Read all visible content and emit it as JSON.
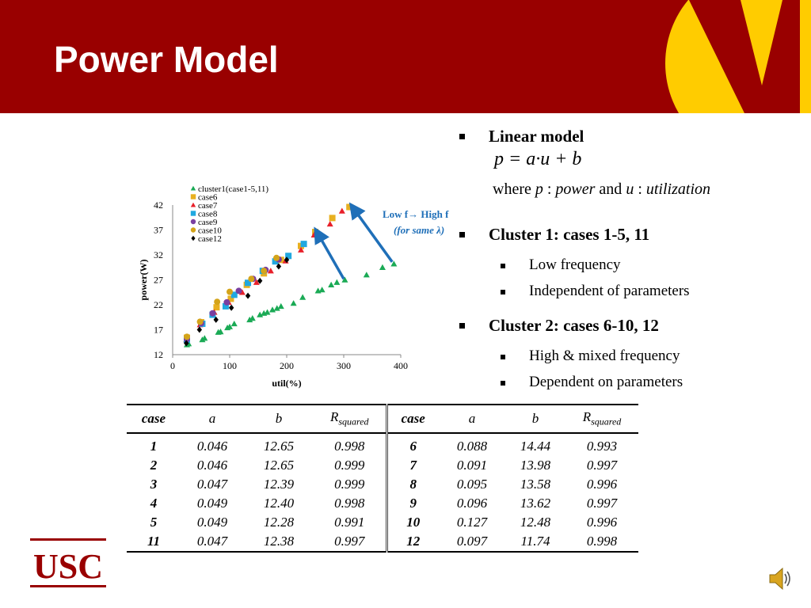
{
  "slide": {
    "title": "Power Model",
    "bullets": {
      "linear_model": "Linear model",
      "cluster1": "Cluster 1: cases 1-5, 11",
      "cluster1_items": [
        "Low frequency",
        "Independent of  parameters"
      ],
      "cluster2": "Cluster 2: cases 6-10, 12",
      "cluster2_items": [
        "High & mixed frequency",
        "Dependent on parameters"
      ]
    },
    "formula": {
      "equation": "p = a·u + b",
      "where_parts": [
        "where ",
        "p",
        " : ",
        "power",
        " and ",
        "u",
        " : ",
        "utilization"
      ]
    },
    "logo_text": "USC",
    "colors": {
      "header": "#990000",
      "logo_yellow": "#ffcc00",
      "arrow": "#1f6fb8"
    }
  },
  "chart_data": {
    "type": "scatter",
    "xlabel": "util(%)",
    "ylabel": "power(W)",
    "xlim": [
      0,
      400
    ],
    "ylim": [
      12,
      42
    ],
    "xticks": [
      0,
      100,
      200,
      300,
      400
    ],
    "yticks": [
      12,
      17,
      22,
      27,
      32,
      37,
      42
    ],
    "grid": false,
    "legend_position": "top-left",
    "annotation": {
      "line1": "Low f",
      "arrow_glyph": "→",
      "line2": "High f",
      "line3": "(for same λ)"
    },
    "series": [
      {
        "name": "cluster1(case1-5,11)",
        "marker": "triangle",
        "color": "#1aaa55",
        "points": [
          [
            25,
            14
          ],
          [
            28,
            14.2
          ],
          [
            52,
            15
          ],
          [
            56,
            15.3
          ],
          [
            80,
            16.5
          ],
          [
            84,
            16.6
          ],
          [
            96,
            17.4
          ],
          [
            100,
            17.6
          ],
          [
            108,
            18.2
          ],
          [
            135,
            19
          ],
          [
            140,
            19.3
          ],
          [
            153,
            20
          ],
          [
            160,
            20.3
          ],
          [
            166,
            20.5
          ],
          [
            175,
            21
          ],
          [
            183,
            21.3
          ],
          [
            190,
            21.7
          ],
          [
            212,
            22.3
          ],
          [
            228,
            23.5
          ],
          [
            255,
            24.8
          ],
          [
            262,
            25
          ],
          [
            278,
            26
          ],
          [
            288,
            26.5
          ],
          [
            302,
            27
          ],
          [
            340,
            28
          ],
          [
            368,
            29.5
          ],
          [
            388,
            30.2
          ]
        ]
      },
      {
        "name": "case6",
        "marker": "square",
        "color": "#e8b020",
        "points": [
          [
            25,
            15.4
          ],
          [
            50,
            18.5
          ],
          [
            77,
            21.5
          ],
          [
            102,
            23.2
          ],
          [
            130,
            26
          ],
          [
            160,
            28.3
          ],
          [
            190,
            31
          ],
          [
            225,
            33.8
          ],
          [
            250,
            36.6
          ],
          [
            280,
            39.4
          ],
          [
            310,
            41.6
          ]
        ]
      },
      {
        "name": "case7",
        "marker": "triangle",
        "color": "#e8202a",
        "points": [
          [
            24,
            15
          ],
          [
            48,
            18
          ],
          [
            73,
            20.5
          ],
          [
            98,
            22.5
          ],
          [
            122,
            24.5
          ],
          [
            147,
            26.5
          ],
          [
            172,
            28.8
          ],
          [
            198,
            30.8
          ],
          [
            225,
            33
          ],
          [
            248,
            36
          ],
          [
            276,
            38.2
          ],
          [
            297,
            40.8
          ]
        ]
      },
      {
        "name": "case8",
        "marker": "square",
        "color": "#20a8e0",
        "points": [
          [
            25,
            15
          ],
          [
            52,
            18.2
          ],
          [
            70,
            20
          ],
          [
            93,
            21.7
          ],
          [
            108,
            24
          ],
          [
            132,
            26.4
          ],
          [
            158,
            28.8
          ],
          [
            180,
            30.7
          ],
          [
            203,
            31.8
          ],
          [
            230,
            34.2
          ]
        ]
      },
      {
        "name": "case9",
        "marker": "circle",
        "color": "#7a3fa0",
        "points": [
          [
            25,
            15.1
          ],
          [
            50,
            18.3
          ],
          [
            70,
            20.3
          ],
          [
            95,
            22.5
          ],
          [
            116,
            24.8
          ],
          [
            141,
            27.2
          ],
          [
            163,
            29
          ],
          [
            186,
            31.1
          ]
        ]
      },
      {
        "name": "case10",
        "marker": "circle",
        "color": "#d4a41a",
        "points": [
          [
            25,
            15.6
          ],
          [
            48,
            18.6
          ],
          [
            78,
            22.6
          ],
          [
            100,
            24.6
          ],
          [
            138,
            27.2
          ],
          [
            160,
            28.8
          ],
          [
            182,
            31.4
          ]
        ]
      },
      {
        "name": "case12",
        "marker": "diamond",
        "color": "#000000",
        "points": [
          [
            24,
            14.3
          ],
          [
            47,
            17
          ],
          [
            76,
            19
          ],
          [
            103,
            21.4
          ],
          [
            132,
            23.8
          ],
          [
            153,
            26.8
          ],
          [
            186,
            29.7
          ],
          [
            200,
            31
          ]
        ]
      }
    ]
  },
  "table": {
    "headers": [
      "case",
      "a",
      "b",
      "R",
      "squared",
      "case",
      "a",
      "b",
      "R",
      "squared"
    ],
    "rows": [
      [
        "1",
        "0.046",
        "12.65",
        "0.998",
        "6",
        "0.088",
        "14.44",
        "0.993"
      ],
      [
        "2",
        "0.046",
        "12.65",
        "0.999",
        "7",
        "0.091",
        "13.98",
        "0.997"
      ],
      [
        "3",
        "0.047",
        "12.39",
        "0.999",
        "8",
        "0.095",
        "13.58",
        "0.996"
      ],
      [
        "4",
        "0.049",
        "12.40",
        "0.998",
        "9",
        "0.096",
        "13.62",
        "0.997"
      ],
      [
        "5",
        "0.049",
        "12.28",
        "0.991",
        "10",
        "0.127",
        "12.48",
        "0.996"
      ],
      [
        "11",
        "0.047",
        "12.38",
        "0.997",
        "12",
        "0.097",
        "11.74",
        "0.998"
      ]
    ]
  }
}
